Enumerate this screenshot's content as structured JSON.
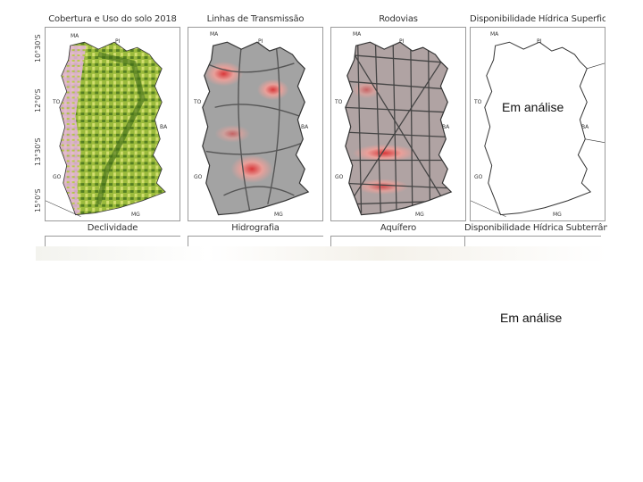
{
  "latitude_labels": [
    "10°30'S",
    "12°0'S",
    "13°30'S",
    "15°0'S"
  ],
  "row1": [
    {
      "title": "Cobertura e Uso do solo 2018",
      "style": "landcover"
    },
    {
      "title": "Linhas de Transmissão",
      "style": "transmission"
    },
    {
      "title": "Rodovias",
      "style": "roads"
    },
    {
      "title": "Disponibilidade Hídrica Superficial",
      "style": "blank",
      "overlay": "Em análise"
    }
  ],
  "row2": [
    {
      "title": "Declividade"
    },
    {
      "title": "Hidrografia"
    },
    {
      "title": "Aquífero"
    },
    {
      "title": "Disponibilidade Hídrica Subterrânea"
    }
  ],
  "state_labels": {
    "MA": "MA",
    "PI": "PI",
    "TO": "TO",
    "BA": "BA",
    "GO": "GO",
    "MG": "MG"
  },
  "bottom_overlay": "Em análise",
  "colors": {
    "landcover_green": "#6f9a2e",
    "landcover_light": "#c8d96b",
    "landcover_pink": "#e7b4de",
    "heat_red": "#d9383a",
    "heat_pink": "#e8a09a",
    "heat_gray": "#9c9c9c",
    "roads": "#4a4a4a"
  }
}
